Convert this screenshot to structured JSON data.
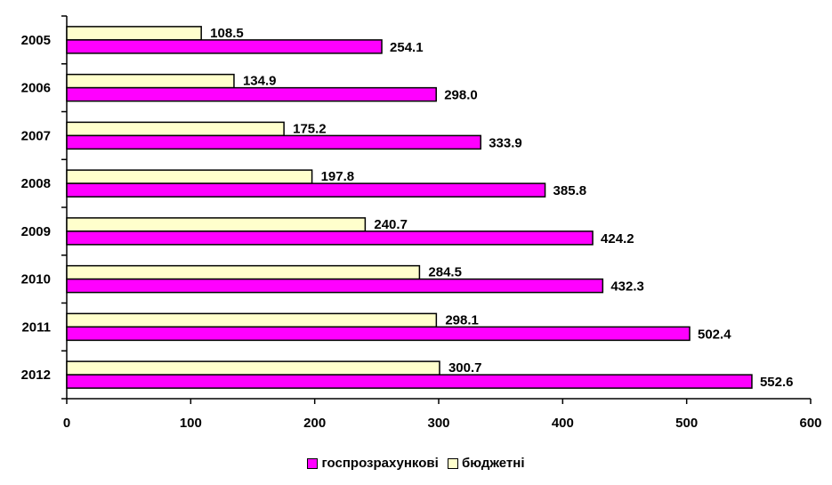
{
  "chart_data": {
    "type": "bar",
    "orientation": "horizontal",
    "categories": [
      "2005",
      "2006",
      "2007",
      "2008",
      "2009",
      "2010",
      "2011",
      "2012"
    ],
    "series": [
      {
        "name": "госпрозрахункові",
        "color": "#ff00ff",
        "values": [
          254.1,
          298.0,
          333.9,
          385.8,
          424.2,
          432.3,
          502.4,
          552.6
        ],
        "labels": [
          "254.1",
          "298.0",
          "333.9",
          "385.8",
          "424.2",
          "432.3",
          "502.4",
          "552.6"
        ]
      },
      {
        "name": "бюджетні",
        "color": "#ffffcc",
        "values": [
          108.5,
          134.9,
          175.2,
          197.8,
          240.7,
          284.5,
          298.1,
          300.7
        ],
        "labels": [
          "108.5",
          "134.9",
          "175.2",
          "197.8",
          "240.7",
          "284.5",
          "298.1",
          "300.7"
        ]
      }
    ],
    "xlim": [
      0,
      600
    ],
    "xticks": [
      "0",
      "100",
      "200",
      "300",
      "400",
      "500",
      "600"
    ],
    "grid": false,
    "legend_position": "bottom"
  }
}
